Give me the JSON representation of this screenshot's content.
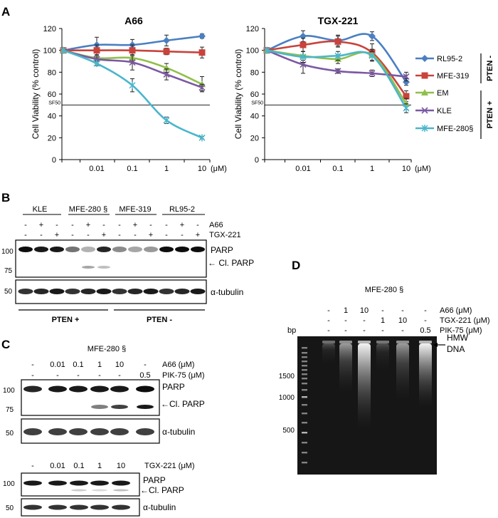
{
  "panels": {
    "A": "A",
    "B": "B",
    "C": "C",
    "D": "D"
  },
  "chart_data": [
    {
      "type": "line",
      "title": "A66",
      "ylabel": "Cell Viability (% control)",
      "xlabel": "",
      "categories": [
        "",
        "0.01",
        "0.1",
        "1",
        "10"
      ],
      "unit_label": "(μM)",
      "ylim": [
        0,
        120
      ],
      "yticks": [
        0,
        20,
        40,
        60,
        80,
        100,
        120
      ],
      "reference": {
        "label": "SF50",
        "y": 50
      },
      "series": [
        {
          "name": "RL95-2",
          "color": "#4a7fc1",
          "marker": "diamond",
          "values": [
            100,
            105,
            105,
            109,
            113
          ],
          "errors": [
            0,
            7,
            5,
            5,
            2
          ]
        },
        {
          "name": "MFE-319",
          "color": "#c8433c",
          "marker": "square",
          "values": [
            100,
            100,
            100,
            99,
            98
          ],
          "errors": [
            0,
            5,
            5,
            3,
            5
          ]
        },
        {
          "name": "EM",
          "color": "#90bf4b",
          "marker": "triangle",
          "values": [
            100,
            93,
            93,
            84,
            69
          ],
          "errors": [
            0,
            3,
            3,
            4,
            7
          ]
        },
        {
          "name": "KLE",
          "color": "#7b58a3",
          "marker": "x",
          "values": [
            100,
            92,
            89,
            78,
            66
          ],
          "errors": [
            0,
            4,
            7,
            5,
            3
          ]
        },
        {
          "name": "MFE-280§",
          "color": "#4bb6cc",
          "marker": "star",
          "values": [
            100,
            88,
            68,
            36,
            20
          ],
          "errors": [
            0,
            2,
            6,
            3,
            1
          ]
        }
      ]
    },
    {
      "type": "line",
      "title": "TGX-221",
      "ylabel": "Cell Viability (% control)",
      "xlabel": "",
      "categories": [
        "",
        "0.01",
        "0.1",
        "1",
        "10"
      ],
      "unit_label": "(μM)",
      "ylim": [
        0,
        120
      ],
      "yticks": [
        0,
        20,
        40,
        60,
        80,
        100,
        120
      ],
      "reference": {
        "label": "SF50",
        "y": 50
      },
      "series": [
        {
          "name": "RL95-2",
          "color": "#4a7fc1",
          "marker": "diamond",
          "values": [
            100,
            113,
            109,
            113,
            71
          ],
          "errors": [
            0,
            5,
            5,
            4,
            3
          ]
        },
        {
          "name": "MFE-319",
          "color": "#c8433c",
          "marker": "square",
          "values": [
            100,
            105,
            108,
            98,
            58
          ],
          "errors": [
            0,
            6,
            5,
            8,
            5
          ]
        },
        {
          "name": "EM",
          "color": "#90bf4b",
          "marker": "triangle",
          "values": [
            100,
            95,
            92,
            96,
            51
          ],
          "errors": [
            0,
            4,
            4,
            5,
            5
          ]
        },
        {
          "name": "KLE",
          "color": "#7b58a3",
          "marker": "x",
          "values": [
            100,
            87,
            81,
            79,
            76
          ],
          "errors": [
            0,
            8,
            2,
            3,
            4
          ]
        },
        {
          "name": "MFE-280§",
          "color": "#4bb6cc",
          "marker": "star",
          "values": [
            100,
            94,
            95,
            95,
            47
          ],
          "errors": [
            0,
            5,
            4,
            4,
            4
          ]
        }
      ]
    }
  ],
  "legend": {
    "items": [
      "RL95-2",
      "MFE-319",
      "EM",
      "KLE",
      "MFE-280§"
    ],
    "pten_minus": "PTEN -",
    "pten_plus": "PTEN +"
  },
  "panel_b": {
    "cell_lines": [
      "KLE",
      "MFE-280 §",
      "MFE-319",
      "RL95-2"
    ],
    "row_a66": [
      "-",
      "+",
      "-",
      "-",
      "+",
      "-",
      "-",
      "+",
      "-",
      "-",
      "+",
      "-"
    ],
    "row_tgx": [
      "-",
      "-",
      "+",
      "-",
      "-",
      "+",
      "-",
      "-",
      "+",
      "-",
      "-",
      "+"
    ],
    "row_a66_label": "A66",
    "row_tgx_label": "TGX-221",
    "mw_parp": "100",
    "mw_cl": "75",
    "mw_tub": "50",
    "parp": "PARP",
    "cl_parp": "← Cl. PARP",
    "tubulin": "α-tubulin",
    "pten_plus": "PTEN +",
    "pten_minus": "PTEN -"
  },
  "panel_c": {
    "cell_line": "MFE-280 §",
    "a66_values": [
      "-",
      "0.01",
      "0.1",
      "1",
      "10",
      "-"
    ],
    "a66_label": "A66 (μM)",
    "pik_values": [
      "-",
      "-",
      "-",
      "-",
      "-",
      "0.5"
    ],
    "pik_label": "PIK-75 (μM)",
    "tgx_values": [
      "-",
      "0.01",
      "0.1",
      "1",
      "10"
    ],
    "tgx_label": "TGX-221 (μM)",
    "mw_parp": "100",
    "mw_cl": "75",
    "mw_tub": "50",
    "mw_parp2": "100",
    "mw_tub2": "50",
    "parp": "PARP",
    "cl_parp": "←Cl. PARP",
    "tubulin": "α-tubulin",
    "parp2": "PARP",
    "cl_parp2": "←Cl. PARP",
    "tubulin2": "α-tubulin"
  },
  "panel_d": {
    "cell_line": "MFE-280 §",
    "a66_values": [
      "-",
      "1",
      "10",
      "-",
      "-",
      "-"
    ],
    "a66_label": "A66 (μM)",
    "tgx_values": [
      "-",
      "-",
      "-",
      "1",
      "10",
      "-"
    ],
    "tgx_label": "TGX-221 (μM)",
    "pik_values": [
      "-",
      "-",
      "-",
      "-",
      "-",
      "0.5"
    ],
    "pik_label": "PIK-75 (μM)",
    "bp": "bp",
    "markers": [
      "1500",
      "1000",
      "500"
    ],
    "hmw": "HMW",
    "dna": "DNA"
  }
}
